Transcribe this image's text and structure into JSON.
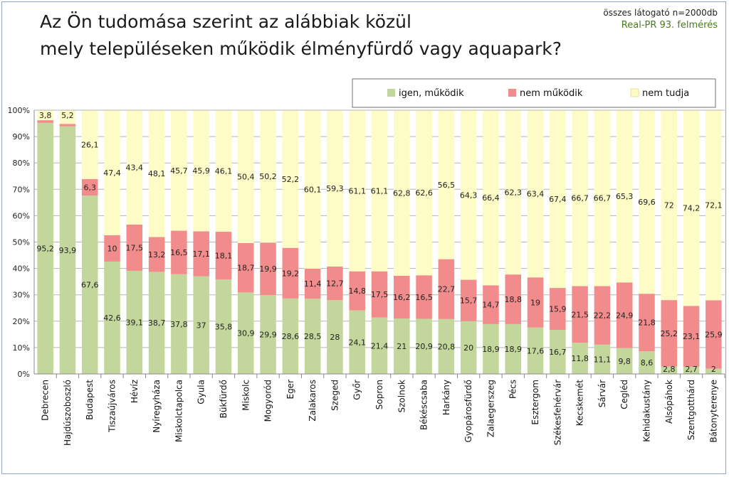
{
  "title_lines": [
    "Az Ön tudomása szerint az alábbiak közül",
    "mely településeken működik élményfürdő vagy aquapark?"
  ],
  "note": {
    "sample": "összes látogató n=2000db",
    "source": "Real-PR 93. felmérés"
  },
  "chart_data": {
    "type": "bar",
    "stacked": true,
    "normalized_percent": true,
    "ylim": [
      0,
      100
    ],
    "yticks": [
      "0%",
      "10%",
      "20%",
      "30%",
      "40%",
      "50%",
      "60%",
      "70%",
      "80%",
      "90%",
      "100%"
    ],
    "grid": true,
    "legend_position": "top-right",
    "categories": [
      "Debrecen",
      "Hajdúszoboszló",
      "Budapest",
      "Tiszaújváros",
      "Hévíz",
      "Nyíregyháza",
      "Miskolctapolca",
      "Gyula",
      "Bükfürdő",
      "Miskolc",
      "Mogyoród",
      "Eger",
      "Zalakaros",
      "Szeged",
      "Győr",
      "Sopron",
      "Szolnok",
      "Békéscsaba",
      "Harkány",
      "Gyopárosfürdő",
      "Zalaegerszeg",
      "Pécs",
      "Esztergom",
      "Székesfehérvár",
      "Kecskemét",
      "Sárvár",
      "Cegléd",
      "Kehidakustány",
      "Alsópáhok",
      "Szentgotthárd",
      "Bátonyterenye"
    ],
    "series": [
      {
        "name": "igen, működik",
        "color": "#c3d69b",
        "values": [
          95.2,
          93.9,
          67.6,
          42.6,
          39.1,
          38.7,
          37.8,
          37,
          35.8,
          30.9,
          29.9,
          28.6,
          28.5,
          28,
          24.1,
          21.4,
          21,
          20.9,
          20.8,
          20,
          18.9,
          18.9,
          17.6,
          16.7,
          11.8,
          11.1,
          9.8,
          8.6,
          2.8,
          2.7,
          2
        ],
        "labels": [
          "95,2",
          "93,9",
          "67,6",
          "42,6",
          "39,1",
          "38,7",
          "37,8",
          "37",
          "35,8",
          "30,9",
          "29,9",
          "28,6",
          "28,5",
          "28",
          "24,1",
          "21,4",
          "21",
          "20,9",
          "20,8",
          "20",
          "18,9",
          "18,9",
          "17,6",
          "16,7",
          "11,8",
          "11,1",
          "9,8",
          "8,6",
          "2,8",
          "2,7",
          "2"
        ]
      },
      {
        "name": "nem működik",
        "color": "#f28c8c",
        "values": [
          1.0,
          0.9,
          6.3,
          10,
          17.5,
          13.2,
          16.5,
          17.1,
          18.1,
          18.7,
          19.9,
          19.2,
          11.4,
          12.7,
          14.8,
          17.5,
          16.2,
          16.5,
          22.7,
          15.7,
          14.7,
          18.8,
          19,
          15.9,
          21.5,
          22.2,
          24.9,
          21.8,
          25.2,
          23.1,
          25.9
        ],
        "labels": [
          "",
          "",
          "6,3",
          "10",
          "17,5",
          "13,2",
          "16,5",
          "17,1",
          "18,1",
          "18,7",
          "19,9",
          "19,2",
          "11,4",
          "12,7",
          "14,8",
          "17,5",
          "16,2",
          "16,5",
          "22,7",
          "15,7",
          "14,7",
          "18,8",
          "19",
          "15,9",
          "21,5",
          "22,2",
          "24,9",
          "21,8",
          "25,2",
          "23,1",
          "25,9"
        ]
      },
      {
        "name": "nem tudja",
        "color": "#fdfbc6",
        "values": [
          3.8,
          5.2,
          26.1,
          47.4,
          43.4,
          48.1,
          45.7,
          45.9,
          46.1,
          50.4,
          50.2,
          52.2,
          60.1,
          59.3,
          61.1,
          61.1,
          62.8,
          62.6,
          56.5,
          64.3,
          66.4,
          62.3,
          63.4,
          67.4,
          66.7,
          66.7,
          65.3,
          69.6,
          72,
          74.2,
          72.1
        ],
        "labels": [
          "3,8",
          "5,2",
          "26,1",
          "47,4",
          "43,4",
          "48,1",
          "45,7",
          "45,9",
          "46,1",
          "50,4",
          "50,2",
          "52,2",
          "60,1",
          "59,3",
          "61,1",
          "61,1",
          "62,8",
          "62,6",
          "56,5",
          "64,3",
          "66,4",
          "62,3",
          "63,4",
          "67,4",
          "66,7",
          "66,7",
          "65,3",
          "69,6",
          "72",
          "74,2",
          "72,1"
        ]
      }
    ]
  }
}
